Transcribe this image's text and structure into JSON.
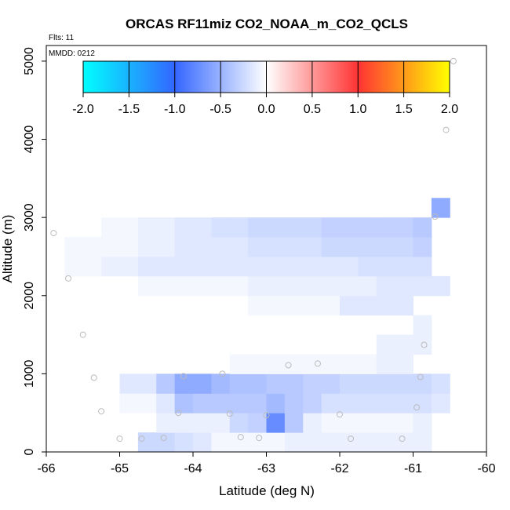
{
  "chart_data": {
    "type": "heatmap",
    "title": "ORCAS RF11miz CO2_NOAA_m_CO2_QCLS",
    "annotations": {
      "flights": "Flts: 11",
      "mmdd": "MMDD: 0212"
    },
    "xlabel": "Latitude (deg N)",
    "ylabel": "Altitude (m)",
    "xlim": [
      -66,
      -60
    ],
    "ylim": [
      0,
      5200
    ],
    "x_ticks": [
      "-66",
      "-65",
      "-64",
      "-63",
      "-62",
      "-61",
      "-60"
    ],
    "y_ticks": [
      "0",
      "1000",
      "2000",
      "3000",
      "4000",
      "5000"
    ],
    "colorbar": {
      "range": [
        -2.0,
        2.0
      ],
      "tick_labels": [
        "-2.0",
        "-1.5",
        "-1.0",
        "-0.5",
        "0.0",
        "0.5",
        "1.0",
        "1.5",
        "2.0"
      ],
      "colors": [
        "#00ffff",
        "#3366ff",
        "#ffffff",
        "#ff3333",
        "#ffff00"
      ]
    },
    "cell_size": {
      "lat": 0.25,
      "alt": 250
    },
    "rows": [
      {
        "alt": 0,
        "lat0": -64.75,
        "values": [
          -0.25,
          -0.25,
          -0.2,
          -0.15,
          -0.05,
          -0.05,
          -0.05,
          -0.05,
          -0.1,
          -0.1,
          -0.1,
          -0.1,
          -0.1,
          -0.1,
          -0.1,
          -0.1
        ]
      },
      {
        "alt": 250,
        "lat0": -64.5,
        "values": [
          -0.1,
          -0.1,
          -0.1,
          -0.1,
          -0.25,
          -0.3,
          -0.75,
          -0.35,
          -0.1,
          -0.05,
          -0.05,
          -0.05,
          -0.05,
          -0.05,
          -0.1
        ]
      },
      {
        "alt": 500,
        "lat0": -65.0,
        "values": [
          -0.05,
          -0.05,
          -0.15,
          -0.4,
          -0.35,
          -0.35,
          -0.35,
          -0.35,
          -0.45,
          -0.35,
          -0.3,
          -0.2,
          -0.2,
          -0.2,
          -0.2,
          -0.2,
          -0.2,
          -0.15
        ]
      },
      {
        "alt": 750,
        "lat0": -65.0,
        "values": [
          -0.15,
          -0.15,
          -0.35,
          -0.55,
          -0.55,
          -0.45,
          -0.4,
          -0.4,
          -0.35,
          -0.35,
          -0.3,
          -0.3,
          -0.25,
          -0.25,
          -0.25,
          -0.25,
          -0.25,
          -0.2
        ]
      },
      {
        "alt": 1000,
        "lat0": -63.5,
        "values": [
          -0.05,
          -0.05,
          -0.05,
          -0.05,
          -0.05,
          -0.05,
          -0.05,
          -0.05,
          -0.1,
          -0.1
        ]
      },
      {
        "alt": 1250,
        "lat0": -61.5,
        "values": [
          -0.1,
          -0.1,
          -0.1
        ]
      },
      {
        "alt": 1500,
        "lat0": -61.0,
        "values": [
          -0.1
        ]
      },
      {
        "alt": 1750,
        "lat0": -63.25,
        "values": [
          -0.05,
          -0.05,
          -0.05,
          -0.05,
          -0.05,
          -0.15,
          -0.15,
          -0.15,
          -0.15
        ]
      },
      {
        "alt": 2000,
        "lat0": -64.75,
        "values": [
          -0.05,
          -0.05,
          -0.05,
          -0.05,
          -0.05,
          -0.05,
          -0.1,
          -0.1,
          -0.1,
          -0.1,
          -0.1,
          -0.1,
          -0.1,
          -0.15,
          -0.15,
          -0.15,
          -0.15
        ]
      },
      {
        "alt": 2250,
        "lat0": -65.75,
        "values": [
          -0.05,
          -0.05,
          -0.1,
          -0.1,
          -0.15,
          -0.15,
          -0.15,
          -0.15,
          -0.15,
          -0.15,
          -0.15,
          -0.15,
          -0.15,
          -0.15,
          -0.15,
          -0.15,
          -0.2,
          -0.2,
          -0.2,
          -0.2
        ]
      },
      {
        "alt": 2500,
        "lat0": -65.75,
        "values": [
          -0.05,
          -0.05,
          -0.05,
          -0.05,
          -0.1,
          -0.1,
          -0.15,
          -0.15,
          -0.15,
          -0.15,
          -0.2,
          -0.2,
          -0.2,
          -0.2,
          -0.25,
          -0.25,
          -0.25,
          -0.25,
          -0.25,
          -0.3
        ]
      },
      {
        "alt": 2750,
        "lat0": -65.25,
        "values": [
          -0.05,
          -0.05,
          -0.1,
          -0.1,
          -0.15,
          -0.15,
          -0.2,
          -0.2,
          -0.25,
          -0.25,
          -0.25,
          -0.25,
          -0.3,
          -0.3,
          -0.3,
          -0.3,
          -0.3,
          -0.35
        ]
      },
      {
        "alt": 3000,
        "lat0": -60.75,
        "values": [
          -0.55
        ]
      }
    ],
    "points": [
      {
        "lat": -65.9,
        "alt": 2800
      },
      {
        "lat": -65.7,
        "alt": 2220
      },
      {
        "lat": -65.5,
        "alt": 1500
      },
      {
        "lat": -65.35,
        "alt": 950
      },
      {
        "lat": -65.25,
        "alt": 520
      },
      {
        "lat": -65.0,
        "alt": 170
      },
      {
        "lat": -64.7,
        "alt": 170
      },
      {
        "lat": -64.4,
        "alt": 180
      },
      {
        "lat": -64.2,
        "alt": 500
      },
      {
        "lat": -64.13,
        "alt": 970
      },
      {
        "lat": -63.6,
        "alt": 1000
      },
      {
        "lat": -63.5,
        "alt": 490
      },
      {
        "lat": -63.35,
        "alt": 190
      },
      {
        "lat": -63.1,
        "alt": 180
      },
      {
        "lat": -63.0,
        "alt": 470
      },
      {
        "lat": -62.7,
        "alt": 1110
      },
      {
        "lat": -62.3,
        "alt": 1130
      },
      {
        "lat": -62.0,
        "alt": 480
      },
      {
        "lat": -61.85,
        "alt": 170
      },
      {
        "lat": -61.15,
        "alt": 170
      },
      {
        "lat": -60.95,
        "alt": 570
      },
      {
        "lat": -60.9,
        "alt": 960
      },
      {
        "lat": -60.85,
        "alt": 1370
      },
      {
        "lat": -60.7,
        "alt": 3010
      },
      {
        "lat": -60.55,
        "alt": 4120
      },
      {
        "lat": -60.45,
        "alt": 5000
      }
    ]
  }
}
